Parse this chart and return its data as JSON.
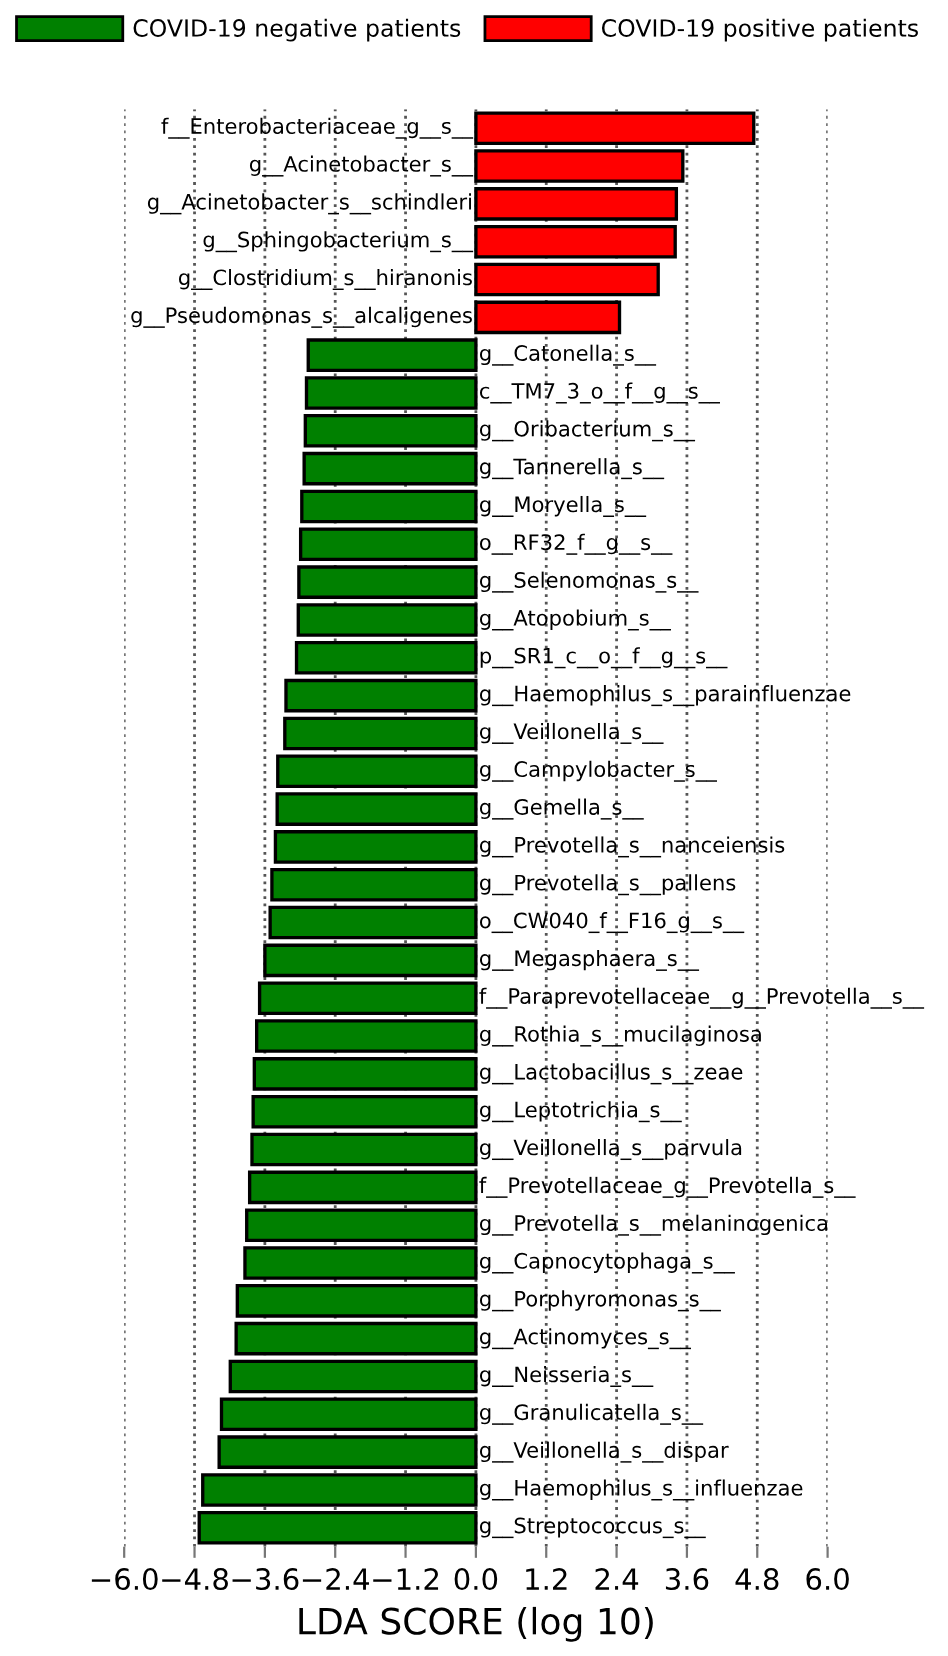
{
  "chart_data": {
    "type": "bar",
    "orientation": "horizontal",
    "xlabel": "LDA SCORE (log 10)",
    "categories": [
      "f__Enterobacteriaceae_g__s__",
      "g__Acinetobacter_s__",
      "g__Acinetobacter_s__schindleri",
      "g__Sphingobacterium_s__",
      "g__Clostridium_s__hiranonis",
      "g__Pseudomonas_s__alcaligenes",
      "g__Catonella_s__",
      "c__TM7_3_o__f__g__s__",
      "g__Oribacterium_s__",
      "g__Tannerella_s__",
      "g__Moryella_s__",
      "o__RF32_f__g__s__",
      "g__Selenomonas_s__",
      "g__Atopobium_s__",
      "p__SR1_c__o__f__g__s__",
      "g__Haemophilus_s__parainfluenzae",
      "g__Veillonella_s__",
      "g__Campylobacter_s__",
      "g__Gemella_s__",
      "g__Prevotella_s__nanceiensis",
      "g__Prevotella_s__pallens",
      "o__CW040_f__F16_g__s__",
      "g__Megasphaera_s__",
      "f__Paraprevotellaceae__g__Prevotella__s__",
      "g__Rothia_s__mucilaginosa",
      "g__Lactobacillus_s__zeae",
      "g__Leptotrichia_s__",
      "g__Veillonella_s__parvula",
      "f__Prevotellaceae_g__Prevotella_s__",
      "g__Prevotella_s__melaninogenica",
      "g__Capnocytophaga_s__",
      "g__Porphyromonas_s__",
      "g__Actinomyces_s__",
      "g__Neisseria_s__",
      "g__Granulicatella_s__",
      "g__Veillonella_s__dispar",
      "g__Haemophilus_s__influenzae",
      "g__Streptococcus_s__"
    ],
    "series": [
      {
        "name": "COVID-19 negative patients",
        "color": "#008000",
        "values": [
          null,
          null,
          null,
          null,
          null,
          null,
          -2.86,
          -2.89,
          -2.91,
          -2.93,
          -2.97,
          -2.99,
          -3.02,
          -3.03,
          -3.06,
          -3.24,
          -3.26,
          -3.38,
          -3.39,
          -3.42,
          -3.48,
          -3.51,
          -3.6,
          -3.69,
          -3.74,
          -3.78,
          -3.8,
          -3.82,
          -3.86,
          -3.91,
          -3.94,
          -4.07,
          -4.09,
          -4.19,
          -4.34,
          -4.38,
          -4.66,
          -4.72
        ]
      },
      {
        "name": "COVID-19 positive patients",
        "color": "#ff0000",
        "values": [
          4.74,
          3.53,
          3.42,
          3.4,
          3.11,
          2.45,
          null,
          null,
          null,
          null,
          null,
          null,
          null,
          null,
          null,
          null,
          null,
          null,
          null,
          null,
          null,
          null,
          null,
          null,
          null,
          null,
          null,
          null,
          null,
          null,
          null,
          null,
          null,
          null,
          null,
          null,
          null,
          null
        ]
      }
    ],
    "xlim": [
      -6.0,
      6.0
    ],
    "xticks": [
      {
        "value": -6.0,
        "label": "−6.0"
      },
      {
        "value": -4.8,
        "label": "−4.8"
      },
      {
        "value": -3.6,
        "label": "−3.6"
      },
      {
        "value": -2.4,
        "label": "−2.4"
      },
      {
        "value": -1.2,
        "label": "−1.2"
      },
      {
        "value": 0,
        "label": "0.0"
      },
      {
        "value": 1.2,
        "label": "1.2"
      },
      {
        "value": 2.4,
        "label": "2.4"
      },
      {
        "value": 3.6,
        "label": "3.6"
      },
      {
        "value": 4.8,
        "label": "4.8"
      },
      {
        "value": 6.0,
        "label": "6.0"
      }
    ],
    "grid": "x",
    "legend": "top"
  }
}
